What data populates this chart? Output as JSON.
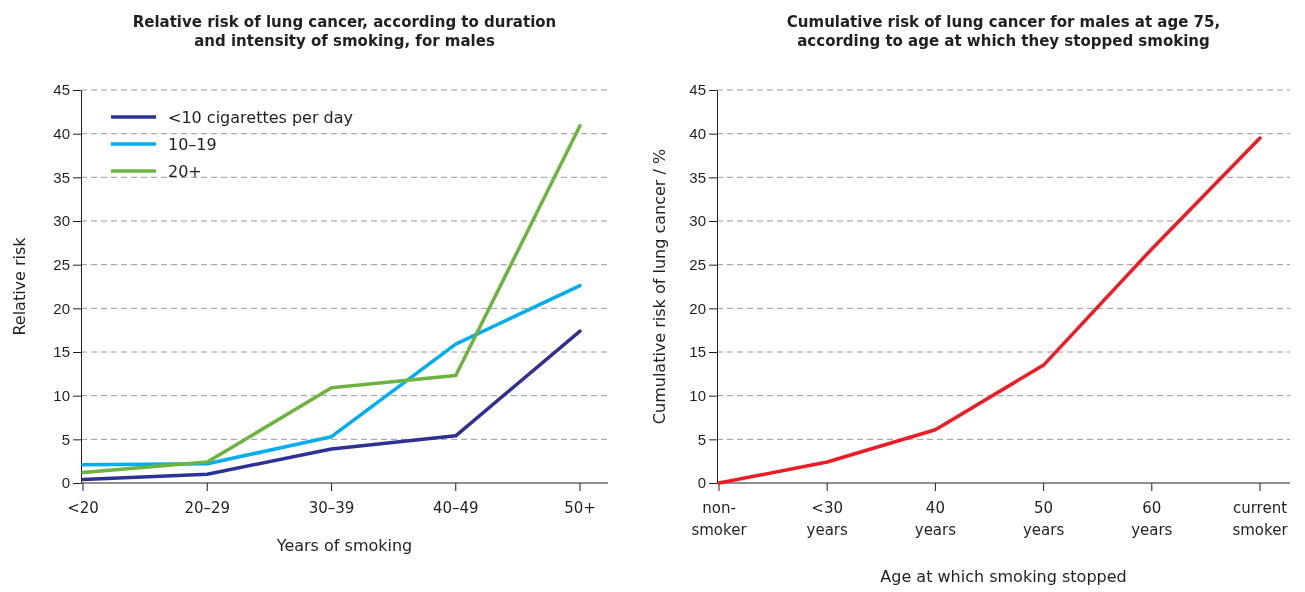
{
  "chart_data": [
    {
      "type": "line",
      "title": "Relative risk of lung cancer, according to duration and intensity of smoking, for males",
      "xlabel": "Years of smoking",
      "ylabel": "Relative risk",
      "categories": [
        "<20",
        "20–29",
        "30–39",
        "40–49",
        "50+"
      ],
      "series": [
        {
          "name": "<10 cigarettes per day",
          "color": "#2e3192",
          "values": [
            0.4,
            1.0,
            3.9,
            5.4,
            17.4
          ]
        },
        {
          "name": "10–19",
          "color": "#00aeef",
          "values": [
            2.1,
            2.2,
            5.3,
            15.9,
            22.6
          ]
        },
        {
          "name": "20+",
          "color": "#6db33f",
          "values": [
            1.2,
            2.4,
            10.9,
            12.3,
            40.9
          ]
        }
      ],
      "ylim": [
        0,
        45
      ],
      "yticks": [
        0,
        5,
        10,
        15,
        20,
        25,
        30,
        35,
        40,
        45
      ],
      "grid": "y",
      "legend": "top left",
      "line_style": "solid",
      "marker": "none"
    },
    {
      "type": "line",
      "title": "Cumulative risk of lung cancer for males at age 75, according to age at which they stopped smoking",
      "xlabel": "Age at which smoking stopped",
      "ylabel": "Cumulative risk of lung cancer / %",
      "categories": [
        "non-smoker",
        "<30 years",
        "40 years",
        "50 years",
        "60 years",
        "current smoker"
      ],
      "series": [
        {
          "color": "#ed1c24",
          "values": [
            0,
            2.4,
            6.1,
            13.5,
            26.8,
            39.5
          ]
        }
      ],
      "ylim": [
        0,
        45
      ],
      "yticks": [
        0,
        5,
        10,
        15,
        20,
        25,
        30,
        35,
        40,
        45
      ],
      "grid": "y",
      "legend": false,
      "line_style": "solid",
      "marker": "none"
    }
  ]
}
